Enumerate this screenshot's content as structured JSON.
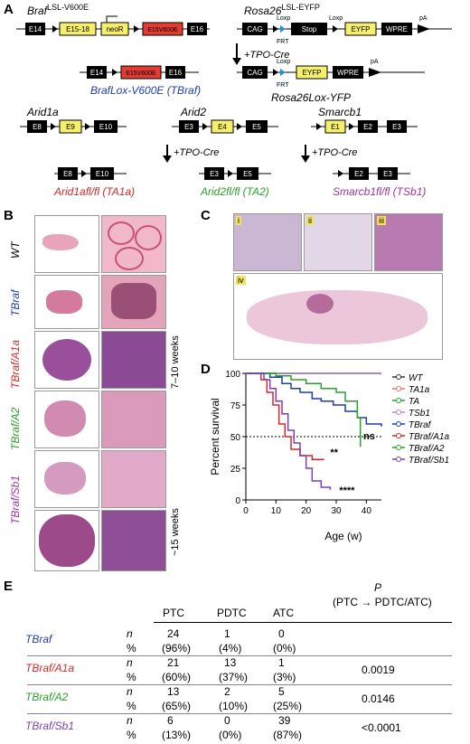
{
  "panels": {
    "A": "A",
    "B": "B",
    "C": "C",
    "D": "D",
    "E": "E"
  },
  "panelA": {
    "braf_title": "Braf",
    "braf_sup": "LSL-V600E",
    "rosa_title": "Rosa26",
    "rosa_sup": "LSL-EYFP",
    "braf_exons": [
      "E14",
      "E15-18",
      "neoR",
      "E15V600E",
      "E16"
    ],
    "rosa_boxes": [
      "CAG",
      "Stop",
      "EYFP",
      "WPRE"
    ],
    "loxp": "Loxp",
    "frt": "FRT",
    "pa": "pA",
    "tpo_cre": "+TPO-Cre",
    "braf_rec_label": "BrafLox-V600E",
    "braf_rec_short": "(TBraf)",
    "rosa_rec_label": "Rosa26Lox-YFP",
    "arid1a": {
      "title": "Arid1a",
      "exons": [
        "E8",
        "E9",
        "E10"
      ],
      "rec_exons": [
        "E8",
        "E10"
      ],
      "label": "Arid1afl/fl (TA1a)"
    },
    "arid2": {
      "title": "Arid2",
      "exons": [
        "E3",
        "E4",
        "E5"
      ],
      "rec_exons": [
        "E3",
        "E5"
      ],
      "label": "Arid2fl/fl (TA2)"
    },
    "smarcb1": {
      "title": "Smarcb1",
      "exons": [
        "E1",
        "E2",
        "E3"
      ],
      "rec_exons": [
        "E2",
        "E3"
      ],
      "label": "Smarcb1fl/fl (TSb1)"
    }
  },
  "panelB": {
    "rows": [
      "WT",
      "TBraf",
      "TBraf/A1a",
      "TBraf/A2",
      "TBraf/Sb1"
    ],
    "age1": "7–10 weeks",
    "age2": "~15 weeks"
  },
  "panelC": {
    "insets": [
      "i",
      "ii",
      "iii",
      "iv"
    ]
  },
  "chart_data": {
    "type": "line",
    "xlabel": "Age (w)",
    "ylabel": "Percent survival",
    "xlim": [
      0,
      45
    ],
    "ylim": [
      0,
      100
    ],
    "xticks": [
      0,
      10,
      20,
      30,
      40
    ],
    "yticks": [
      0,
      25,
      50,
      75,
      100
    ],
    "series": [
      {
        "name": "WT",
        "color": "#333333",
        "points": [
          [
            0,
            100
          ],
          [
            45,
            100
          ]
        ]
      },
      {
        "name": "TA1a",
        "color": "#e8736e",
        "points": [
          [
            0,
            100
          ],
          [
            45,
            100
          ]
        ]
      },
      {
        "name": "TA",
        "color": "#2ca02c",
        "points": [
          [
            0,
            100
          ],
          [
            45,
            100
          ]
        ]
      },
      {
        "name": "TSb1",
        "color": "#b58ad0",
        "points": [
          [
            0,
            100
          ],
          [
            45,
            100
          ]
        ]
      },
      {
        "name": "TBraf",
        "color": "#1f3fa8",
        "points": [
          [
            0,
            100
          ],
          [
            8,
            97
          ],
          [
            12,
            92
          ],
          [
            15,
            88
          ],
          [
            18,
            85
          ],
          [
            22,
            80
          ],
          [
            25,
            78
          ],
          [
            29,
            75
          ],
          [
            33,
            70
          ],
          [
            37,
            65
          ],
          [
            40,
            60
          ],
          [
            45,
            58
          ]
        ]
      },
      {
        "name": "TBraf/A1a",
        "color": "#d62728",
        "points": [
          [
            0,
            100
          ],
          [
            5,
            95
          ],
          [
            7,
            85
          ],
          [
            9,
            75
          ],
          [
            11,
            60
          ],
          [
            13,
            50
          ],
          [
            15,
            40
          ],
          [
            18,
            35
          ],
          [
            22,
            32
          ],
          [
            26,
            32
          ]
        ]
      },
      {
        "name": "TBraf/A2",
        "color": "#2ca02c",
        "points": [
          [
            0,
            100
          ],
          [
            10,
            98
          ],
          [
            15,
            95
          ],
          [
            20,
            92
          ],
          [
            25,
            88
          ],
          [
            30,
            85
          ],
          [
            33,
            78
          ],
          [
            37,
            65
          ],
          [
            38,
            42
          ]
        ]
      },
      {
        "name": "TBraf/Sb1",
        "color": "#7b3fb0",
        "points": [
          [
            0,
            100
          ],
          [
            6,
            95
          ],
          [
            8,
            88
          ],
          [
            10,
            78
          ],
          [
            12,
            68
          ],
          [
            14,
            55
          ],
          [
            16,
            45
          ],
          [
            18,
            35
          ],
          [
            20,
            25
          ],
          [
            22,
            15
          ],
          [
            25,
            10
          ],
          [
            28,
            8
          ]
        ]
      }
    ],
    "annotations": [
      {
        "text": "**"
      },
      {
        "text": "ns"
      },
      {
        "text": "****"
      }
    ]
  },
  "panelE": {
    "headers": [
      "PTC",
      "PDTC",
      "ATC"
    ],
    "p_header": "P",
    "p_sub": "(PTC → PDTC/ATC)",
    "rows": [
      {
        "name": "TBraf",
        "color": "#1f3fa8",
        "n": [
          "24",
          "1",
          "0"
        ],
        "pct": [
          "(96%)",
          "(4%)",
          "(0%)"
        ],
        "p": ""
      },
      {
        "name": "TBraf/A1a",
        "color": "#d62728",
        "n": [
          "21",
          "13",
          "1"
        ],
        "pct": [
          "(60%)",
          "(37%)",
          "(3%)"
        ],
        "p": "0.0019"
      },
      {
        "name": "TBraf/A2",
        "color": "#2ca02c",
        "n": [
          "13",
          "2",
          "5"
        ],
        "pct": [
          "(65%)",
          "(10%)",
          "(25%)"
        ],
        "p": "0.0146"
      },
      {
        "name": "TBraf/Sb1",
        "color": "#7b3fb0",
        "n": [
          "6",
          "0",
          "39"
        ],
        "pct": [
          "(13%)",
          "(0%)",
          "(87%)"
        ],
        "p": "<0.0001"
      }
    ],
    "n_label": "n",
    "pct_label": "%"
  }
}
